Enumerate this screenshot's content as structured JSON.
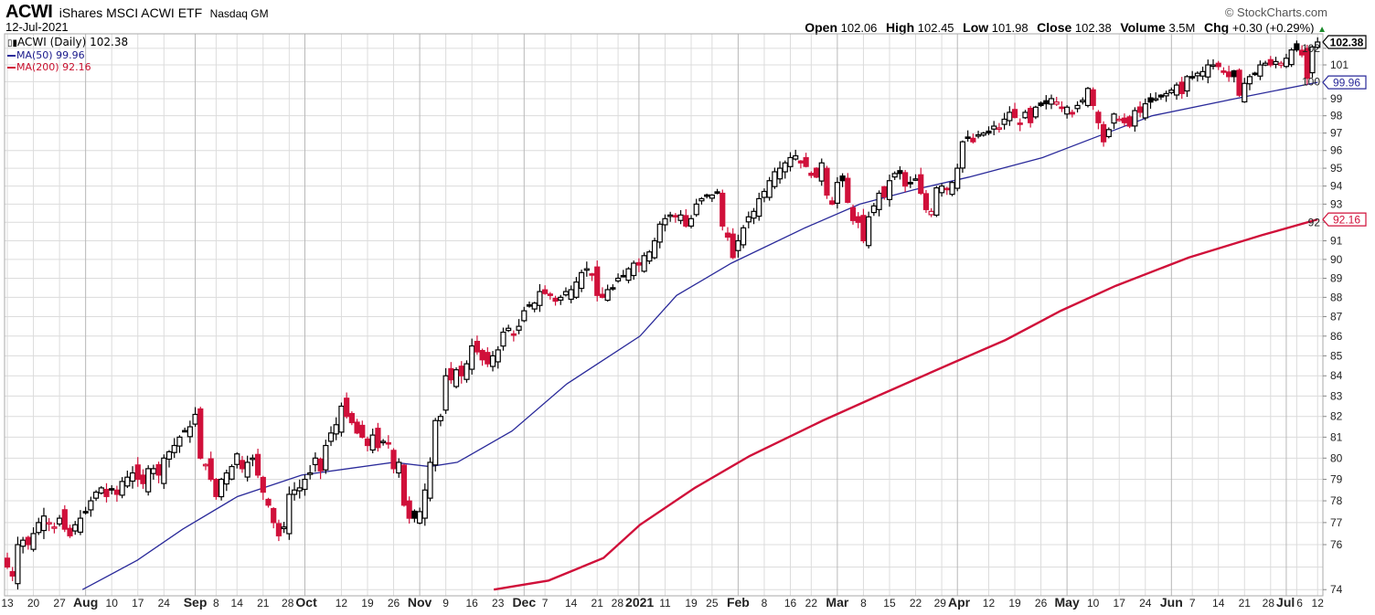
{
  "header": {
    "symbol": "ACWI",
    "name": "iShares MSCI ACWI ETF",
    "exchange": "Nasdaq GM",
    "date": "12-Jul-2021",
    "copyright": "© StockCharts.com",
    "open_label": "Open",
    "open": "102.06",
    "high_label": "High",
    "high": "102.45",
    "low_label": "Low",
    "low": "101.98",
    "close_label": "Close",
    "close": "102.38",
    "volume_label": "Volume",
    "volume": "3.5M",
    "chg_label": "Chg",
    "chg": "+0.30 (+0.29%)",
    "chg_arrow": "▲"
  },
  "legend": {
    "price": "ACWI (Daily) 102.38",
    "ma50": "MA(50) 99.96",
    "ma200": "MA(200) 92.16"
  },
  "colors": {
    "up": "#000000",
    "down": "#d0103a",
    "ma50": "#2a2a9a",
    "ma200": "#d0103a",
    "grid": "#dcdcdc",
    "grid_major": "#b8b8b8"
  },
  "chart_data": {
    "type": "candlestick",
    "title": "ACWI iShares MSCI ACWI ETF (Daily)",
    "yscale": "log",
    "ylim": [
      73.6,
      103.2
    ],
    "yticks": [
      74,
      76,
      77,
      78,
      79,
      80,
      81,
      82,
      83,
      84,
      85,
      86,
      87,
      88,
      89,
      90,
      91,
      92,
      93,
      94,
      95,
      96,
      97,
      98,
      99,
      100,
      101,
      102
    ],
    "last_labels": {
      "close": "102.38",
      "ma50": "99.96",
      "ma200": "92.16"
    },
    "xticks": [
      [
        "13",
        0,
        false
      ],
      [
        "20",
        5,
        false
      ],
      [
        "27",
        10,
        false
      ],
      [
        "Aug",
        15,
        true
      ],
      [
        "10",
        20,
        false
      ],
      [
        "17",
        25,
        false
      ],
      [
        "24",
        30,
        false
      ],
      [
        "Sep",
        36,
        true
      ],
      [
        "8",
        40,
        false
      ],
      [
        "14",
        44,
        false
      ],
      [
        "21",
        49,
        false
      ],
      [
        "28",
        54,
        false
      ],
      [
        "Oct",
        57,
        true
      ],
      [
        "12",
        64,
        false
      ],
      [
        "19",
        69,
        false
      ],
      [
        "26",
        74,
        false
      ],
      [
        "Nov",
        79,
        true
      ],
      [
        "9",
        84,
        false
      ],
      [
        "16",
        89,
        false
      ],
      [
        "23",
        94,
        false
      ],
      [
        "Dec",
        99,
        true
      ],
      [
        "7",
        103,
        false
      ],
      [
        "14",
        108,
        false
      ],
      [
        "21",
        113,
        false
      ],
      [
        "28",
        117,
        false
      ],
      [
        "2021",
        121,
        true
      ],
      [
        "11",
        126,
        false
      ],
      [
        "19",
        131,
        false
      ],
      [
        "25",
        135,
        false
      ],
      [
        "Feb",
        140,
        true
      ],
      [
        "8",
        145,
        false
      ],
      [
        "16",
        150,
        false
      ],
      [
        "22",
        154,
        false
      ],
      [
        "Mar",
        159,
        true
      ],
      [
        "8",
        164,
        false
      ],
      [
        "15",
        169,
        false
      ],
      [
        "22",
        174,
        false
      ],
      [
        "29",
        179,
        false
      ],
      [
        "Apr",
        182,
        true
      ],
      [
        "12",
        188,
        false
      ],
      [
        "19",
        193,
        false
      ],
      [
        "26",
        198,
        false
      ],
      [
        "May",
        203,
        true
      ],
      [
        "10",
        208,
        false
      ],
      [
        "17",
        213,
        false
      ],
      [
        "24",
        218,
        false
      ],
      [
        "Jun",
        223,
        true
      ],
      [
        "7",
        227,
        false
      ],
      [
        "14",
        232,
        false
      ],
      [
        "21",
        237,
        false
      ],
      [
        "28",
        242,
        false
      ],
      [
        "Jul",
        245,
        true
      ],
      [
        "6",
        247,
        false
      ],
      [
        "12",
        251,
        false
      ]
    ],
    "close": [
      75.0,
      74.6,
      76.0,
      76.2,
      76.0,
      76.5,
      77.0,
      77.3,
      77.0,
      76.8,
      77.2,
      76.7,
      76.4,
      76.9,
      77.2,
      77.5,
      78.0,
      78.4,
      78.6,
      78.2,
      78.5,
      78.3,
      78.9,
      79.1,
      79.3,
      79.0,
      78.8,
      79.5,
      79.5,
      79.2,
      80.0,
      80.3,
      80.6,
      81.0,
      81.3,
      81.5,
      82.1,
      80.0,
      79.7,
      79.0,
      78.2,
      79.0,
      79.3,
      79.6,
      80.2,
      79.5,
      79.8,
      80.0,
      79.2,
      78.4,
      77.8,
      77.0,
      76.4,
      76.8,
      78.3,
      78.5,
      78.6,
      79.0,
      79.3,
      80.0,
      79.4,
      80.6,
      81.2,
      81.6,
      82.5,
      82.0,
      81.7,
      81.2,
      81.0,
      80.6,
      81.1,
      80.5,
      80.8,
      80.7,
      79.5,
      79.8,
      77.8,
      77.2,
      77.2,
      77.5,
      78.5,
      79.8,
      81.8,
      82.0,
      84.0,
      83.8,
      84.3,
      84.0,
      84.6,
      85.5,
      85.2,
      84.8,
      84.6,
      85.0,
      85.3,
      86.2,
      86.4,
      86.1,
      86.5,
      87.3,
      87.6,
      87.7,
      88.3,
      88.2,
      88.1,
      87.8,
      88.0,
      88.3,
      88.4,
      88.8,
      89.3,
      89.5,
      89.2,
      88.1,
      88.0,
      88.4,
      88.5,
      89.0,
      89.1,
      89.5,
      89.8,
      89.7,
      90.2,
      90.4,
      91.0,
      91.9,
      92.2,
      92.4,
      92.3,
      92.4,
      91.8,
      92.2,
      93.0,
      93.3,
      93.5,
      93.5,
      93.6,
      91.8,
      91.2,
      90.1,
      91.0,
      91.7,
      92.3,
      92.6,
      93.3,
      93.7,
      94.3,
      94.8,
      95.0,
      95.3,
      95.6,
      95.7,
      95.3,
      95.1,
      94.6,
      94.5,
      95.3,
      93.5,
      93.0,
      94.2,
      94.3,
      93.1,
      92.1,
      92.0,
      91.0,
      92.3,
      92.9,
      93.6,
      93.4,
      94.3,
      94.7,
      94.7,
      94.0,
      94.2,
      94.4,
      93.6,
      92.7,
      92.6,
      93.9,
      94.0,
      93.8,
      94.2,
      95.0,
      96.5,
      96.7,
      96.5,
      96.9,
      97.0,
      97.0,
      97.4,
      97.3,
      97.8,
      98.2,
      97.9,
      97.5,
      98.2,
      97.6,
      98.5,
      98.6,
      98.7,
      99.0,
      98.8,
      98.5,
      98.5,
      98.1,
      98.6,
      98.9,
      99.6,
      98.6,
      97.6,
      96.5,
      97.2,
      98.1,
      97.8,
      97.6,
      97.4,
      98.3,
      98.2,
      98.7,
      98.8,
      99.0,
      99.1,
      99.3,
      99.5,
      99.8,
      99.3,
      100.3,
      100.3,
      100.5,
      100.6,
      101.0,
      101.0,
      100.9,
      100.6,
      100.3,
      100.3,
      99.2,
      99.9,
      100.3,
      100.5,
      101.0,
      101.1,
      101.0,
      101.2,
      101.1,
      101.4,
      101.9,
      101.9,
      101.6,
      100.2,
      102.08,
      102.38
    ],
    "ma50": [
      [
        14.4,
        74.0
      ],
      [
        24.9,
        75.3
      ],
      [
        33.6,
        76.7
      ],
      [
        44.1,
        78.2
      ],
      [
        56.4,
        79.2
      ],
      [
        74,
        79.8
      ],
      [
        80.9,
        79.6
      ],
      [
        86.2,
        79.8
      ],
      [
        96.7,
        81.3
      ],
      [
        107.2,
        83.6
      ],
      [
        121.2,
        86.0
      ],
      [
        128.2,
        88.1
      ],
      [
        138.7,
        89.8
      ],
      [
        152.8,
        91.7
      ],
      [
        163.3,
        93.0
      ],
      [
        173.8,
        93.8
      ],
      [
        184.2,
        94.5
      ],
      [
        198.3,
        95.6
      ],
      [
        208.8,
        96.8
      ],
      [
        219.3,
        98.0
      ],
      [
        236.8,
        99.1
      ],
      [
        251,
        99.96
      ]
    ],
    "ma200": [
      [
        93.2,
        74.0
      ],
      [
        103.7,
        74.4
      ],
      [
        114.2,
        75.4
      ],
      [
        121.2,
        76.9
      ],
      [
        131.7,
        78.6
      ],
      [
        142.2,
        80.1
      ],
      [
        156.2,
        81.8
      ],
      [
        166.7,
        83.0
      ],
      [
        180.7,
        84.6
      ],
      [
        191.2,
        85.8
      ],
      [
        201.8,
        87.3
      ],
      [
        212.3,
        88.6
      ],
      [
        226.3,
        90.1
      ],
      [
        240.3,
        91.3
      ],
      [
        251,
        92.16
      ]
    ]
  }
}
